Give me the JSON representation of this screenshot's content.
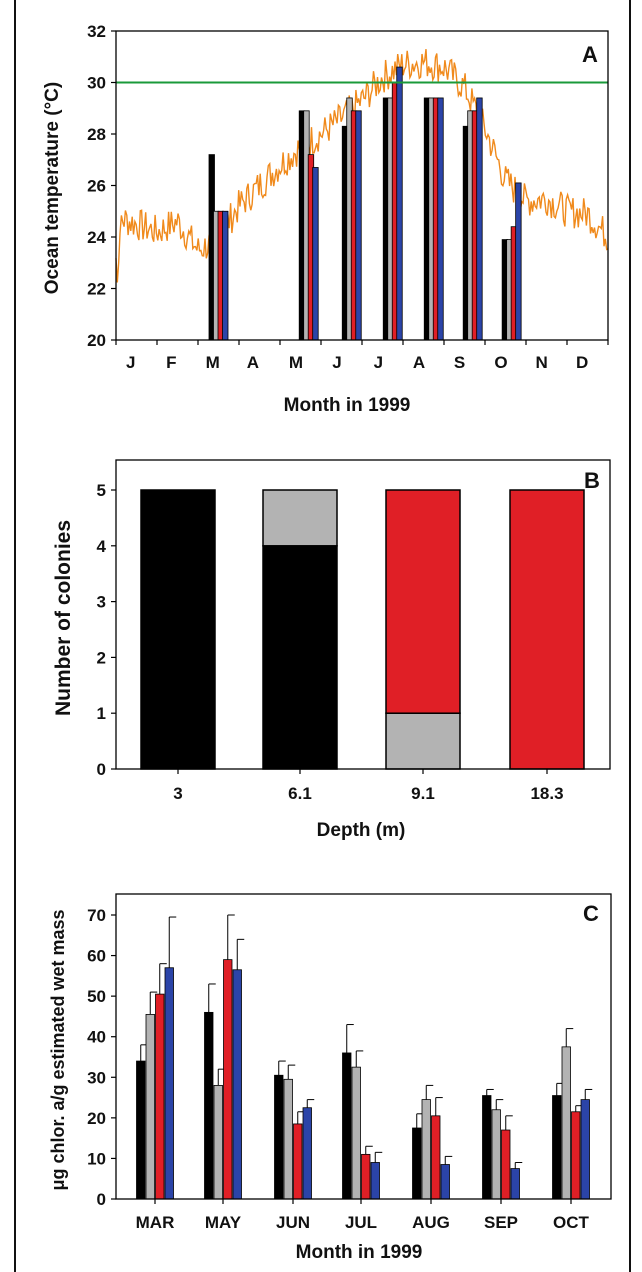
{
  "colors": {
    "black": "#000000",
    "gray": "#b3b3b3",
    "red": "#e01f26",
    "blue": "#2b44a8",
    "orange": "#f08a1c",
    "threshold_green": "#1a9a3a"
  },
  "chart_data": [
    {
      "panel": "A",
      "type": "bar",
      "ylabel": "Ocean temperature (°C)",
      "xlabel": "Month in 1999",
      "ylim": [
        20,
        32
      ],
      "yticks": [
        20,
        22,
        24,
        26,
        28,
        30,
        32
      ],
      "month_labels": [
        "J",
        "F",
        "M",
        "A",
        "M",
        "J",
        "J",
        "A",
        "S",
        "O",
        "N",
        "D"
      ],
      "threshold": 30,
      "line_range": [
        20.5,
        31.5
      ],
      "groups": [
        {
          "month": 2.5,
          "values": [
            27.2,
            25.0,
            25.0,
            25.0
          ]
        },
        {
          "month": 4.7,
          "values": [
            28.9,
            28.9,
            27.2,
            26.7
          ]
        },
        {
          "month": 5.75,
          "values": [
            28.3,
            29.4,
            28.9,
            28.9
          ]
        },
        {
          "month": 6.75,
          "values": [
            29.4,
            29.4,
            30.0,
            30.6
          ]
        },
        {
          "month": 7.75,
          "values": [
            29.4,
            29.4,
            29.4,
            29.4
          ]
        },
        {
          "month": 8.7,
          "values": [
            28.3,
            28.9,
            28.9,
            29.4
          ]
        },
        {
          "month": 9.65,
          "values": [
            23.9,
            23.9,
            24.4,
            26.1
          ]
        }
      ]
    },
    {
      "panel": "B",
      "type": "bar",
      "ylabel": "Number of colonies",
      "xlabel": "Depth (m)",
      "ylim": [
        0,
        5
      ],
      "yticks": [
        0,
        1,
        2,
        3,
        4,
        5
      ],
      "categories": [
        "3",
        "6.1",
        "9.1",
        "18.3"
      ],
      "stacks": [
        [
          {
            "color": "black",
            "value": 5
          }
        ],
        [
          {
            "color": "black",
            "value": 4
          },
          {
            "color": "gray",
            "value": 1
          }
        ],
        [
          {
            "color": "gray",
            "value": 1
          },
          {
            "color": "red",
            "value": 4
          }
        ],
        [
          {
            "color": "red",
            "value": 5
          }
        ]
      ]
    },
    {
      "panel": "C",
      "type": "bar",
      "ylabel": "μg chlor. a/g estimated wet mass",
      "xlabel": "Month in 1999",
      "ylim": [
        0,
        75
      ],
      "yticks": [
        0,
        10,
        20,
        30,
        40,
        50,
        60,
        70
      ],
      "categories": [
        "MAR",
        "MAY",
        "JUN",
        "JUL",
        "AUG",
        "SEP",
        "OCT"
      ],
      "series": [
        {
          "color": "black",
          "values": [
            34,
            46,
            30.5,
            36,
            17.5,
            25.5,
            25.5
          ],
          "errors": [
            4,
            7,
            3.5,
            7,
            3.5,
            1.5,
            3
          ]
        },
        {
          "color": "gray",
          "values": [
            45.5,
            28,
            29.5,
            32.5,
            24.5,
            22,
            37.5
          ],
          "errors": [
            5.5,
            4,
            3.5,
            4,
            3.5,
            2.5,
            4.5
          ]
        },
        {
          "color": "red",
          "values": [
            50.5,
            59,
            18.5,
            11,
            20.5,
            17,
            21.5
          ],
          "errors": [
            7.5,
            11,
            3,
            2,
            4.5,
            3.5,
            1.5
          ]
        },
        {
          "color": "blue",
          "values": [
            57,
            56.5,
            22.5,
            9,
            8.5,
            7.5,
            24.5
          ],
          "errors": [
            12.5,
            7.5,
            2,
            2.5,
            2,
            1.5,
            2.5
          ]
        }
      ]
    }
  ]
}
